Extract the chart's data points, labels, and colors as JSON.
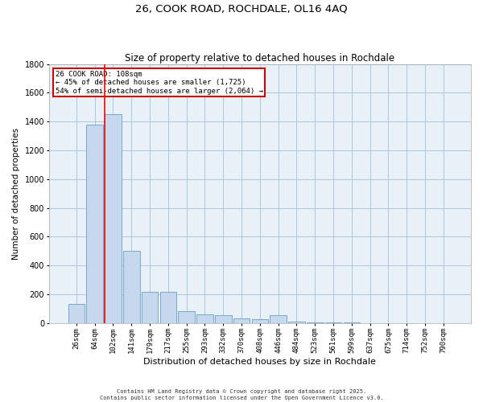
{
  "title": "26, COOK ROAD, ROCHDALE, OL16 4AQ",
  "subtitle": "Size of property relative to detached houses in Rochdale",
  "xlabel": "Distribution of detached houses by size in Rochdale",
  "ylabel": "Number of detached properties",
  "categories": [
    "26sqm",
    "64sqm",
    "102sqm",
    "141sqm",
    "179sqm",
    "217sqm",
    "255sqm",
    "293sqm",
    "332sqm",
    "370sqm",
    "408sqm",
    "446sqm",
    "484sqm",
    "523sqm",
    "561sqm",
    "599sqm",
    "637sqm",
    "675sqm",
    "714sqm",
    "752sqm",
    "790sqm"
  ],
  "values": [
    130,
    1380,
    1450,
    500,
    215,
    215,
    80,
    60,
    55,
    30,
    25,
    55,
    10,
    2,
    1,
    1,
    0,
    0,
    0,
    0,
    0
  ],
  "bar_color": "#c5d8ed",
  "bar_edge_color": "#6a9ec5",
  "red_line_index": 2,
  "annotation_line1": "26 COOK ROAD: 108sqm",
  "annotation_line2": "← 45% of detached houses are smaller (1,725)",
  "annotation_line3": "54% of semi-detached houses are larger (2,064) →",
  "annotation_box_color": "#ffffff",
  "annotation_box_edge": "#cc0000",
  "ylim": [
    0,
    1800
  ],
  "yticks": [
    0,
    200,
    400,
    600,
    800,
    1000,
    1200,
    1400,
    1600,
    1800
  ],
  "grid_color": "#b0c4de",
  "background_color": "#e8f0f8",
  "footer_line1": "Contains HM Land Registry data © Crown copyright and database right 2025.",
  "footer_line2": "Contains public sector information licensed under the Open Government Licence v3.0.",
  "title_fontsize": 9.5,
  "subtitle_fontsize": 8.5,
  "tick_fontsize": 6.5,
  "xlabel_fontsize": 8,
  "ylabel_fontsize": 7.5,
  "annotation_fontsize": 6.5,
  "footer_fontsize": 5
}
